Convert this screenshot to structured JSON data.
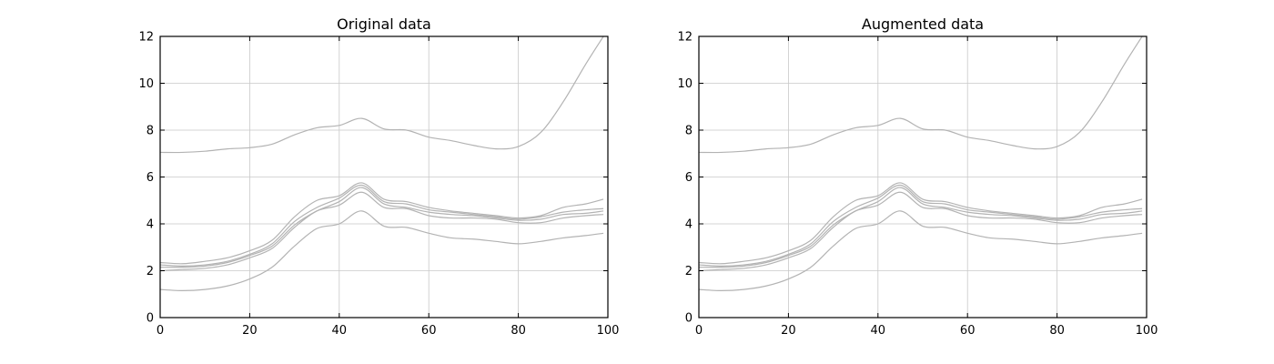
{
  "chart_data": [
    {
      "type": "line",
      "title": "Original data",
      "xlabel": "",
      "ylabel": "",
      "xlim": [
        0,
        100
      ],
      "ylim": [
        0,
        12
      ],
      "xticks": [
        0,
        20,
        40,
        60,
        80,
        100
      ],
      "yticks": [
        0,
        2,
        4,
        6,
        8,
        10,
        12
      ],
      "grid": true,
      "line_color": "#b3b3b3",
      "x": [
        0,
        5,
        10,
        15,
        20,
        25,
        30,
        35,
        40,
        45,
        50,
        55,
        60,
        65,
        70,
        75,
        80,
        85,
        90,
        95,
        99
      ],
      "series": [
        {
          "values": [
            7.05,
            7.05,
            7.1,
            7.2,
            7.25,
            7.4,
            7.8,
            8.1,
            8.2,
            8.5,
            8.05,
            8.0,
            7.7,
            7.55,
            7.35,
            7.2,
            7.3,
            7.9,
            9.2,
            10.8,
            12.0
          ]
        },
        {
          "values": [
            2.35,
            2.3,
            2.4,
            2.55,
            2.85,
            3.3,
            4.3,
            5.0,
            5.2,
            5.75,
            5.05,
            4.95,
            4.7,
            4.55,
            4.45,
            4.35,
            4.25,
            4.35,
            4.7,
            4.85,
            5.05
          ]
        },
        {
          "values": [
            2.25,
            2.2,
            2.25,
            2.4,
            2.7,
            3.15,
            4.1,
            4.7,
            5.1,
            5.65,
            4.95,
            4.85,
            4.6,
            4.5,
            4.4,
            4.3,
            4.2,
            4.3,
            4.5,
            4.6,
            4.65
          ]
        },
        {
          "values": [
            2.15,
            2.15,
            2.2,
            2.35,
            2.65,
            3.05,
            3.95,
            4.55,
            4.95,
            5.55,
            4.85,
            4.7,
            4.5,
            4.4,
            4.35,
            4.25,
            4.15,
            4.2,
            4.4,
            4.45,
            4.55
          ]
        },
        {
          "values": [
            2.0,
            2.05,
            2.1,
            2.25,
            2.55,
            2.95,
            3.85,
            4.55,
            4.8,
            5.35,
            4.7,
            4.65,
            4.35,
            4.25,
            4.25,
            4.2,
            4.05,
            4.05,
            4.25,
            4.35,
            4.4
          ]
        },
        {
          "values": [
            1.2,
            1.15,
            1.2,
            1.35,
            1.65,
            2.15,
            3.05,
            3.8,
            4.0,
            4.55,
            3.9,
            3.85,
            3.6,
            3.4,
            3.35,
            3.25,
            3.15,
            3.25,
            3.4,
            3.5,
            3.6
          ]
        }
      ]
    },
    {
      "type": "line",
      "title": "Augmented data",
      "xlabel": "",
      "ylabel": "",
      "xlim": [
        0,
        100
      ],
      "ylim": [
        0,
        12
      ],
      "xticks": [
        0,
        20,
        40,
        60,
        80,
        100
      ],
      "yticks": [
        0,
        2,
        4,
        6,
        8,
        10,
        12
      ],
      "grid": true,
      "line_color": "#b3b3b3",
      "x": [
        0,
        5,
        10,
        15,
        20,
        25,
        30,
        35,
        40,
        45,
        50,
        55,
        60,
        65,
        70,
        75,
        80,
        85,
        90,
        95,
        99
      ],
      "series": [
        {
          "values": [
            7.05,
            7.05,
            7.1,
            7.2,
            7.25,
            7.4,
            7.8,
            8.1,
            8.2,
            8.5,
            8.05,
            8.0,
            7.7,
            7.55,
            7.35,
            7.2,
            7.3,
            7.9,
            9.2,
            10.8,
            12.0
          ]
        },
        {
          "values": [
            2.35,
            2.3,
            2.4,
            2.55,
            2.85,
            3.3,
            4.3,
            5.0,
            5.2,
            5.75,
            5.05,
            4.95,
            4.7,
            4.55,
            4.45,
            4.35,
            4.25,
            4.35,
            4.7,
            4.85,
            5.05
          ]
        },
        {
          "values": [
            2.25,
            2.2,
            2.25,
            2.4,
            2.7,
            3.15,
            4.1,
            4.7,
            5.1,
            5.65,
            4.95,
            4.85,
            4.6,
            4.5,
            4.4,
            4.3,
            4.2,
            4.3,
            4.5,
            4.6,
            4.65
          ]
        },
        {
          "values": [
            2.15,
            2.15,
            2.2,
            2.35,
            2.65,
            3.05,
            3.95,
            4.55,
            4.95,
            5.55,
            4.85,
            4.7,
            4.5,
            4.4,
            4.35,
            4.25,
            4.15,
            4.2,
            4.4,
            4.45,
            4.55
          ]
        },
        {
          "values": [
            2.0,
            2.05,
            2.1,
            2.25,
            2.55,
            2.95,
            3.85,
            4.55,
            4.8,
            5.35,
            4.7,
            4.65,
            4.35,
            4.25,
            4.25,
            4.2,
            4.05,
            4.05,
            4.25,
            4.35,
            4.4
          ]
        },
        {
          "values": [
            1.2,
            1.15,
            1.2,
            1.35,
            1.65,
            2.15,
            3.05,
            3.8,
            4.0,
            4.55,
            3.9,
            3.85,
            3.6,
            3.4,
            3.35,
            3.25,
            3.15,
            3.25,
            3.4,
            3.5,
            3.6
          ]
        }
      ]
    }
  ]
}
